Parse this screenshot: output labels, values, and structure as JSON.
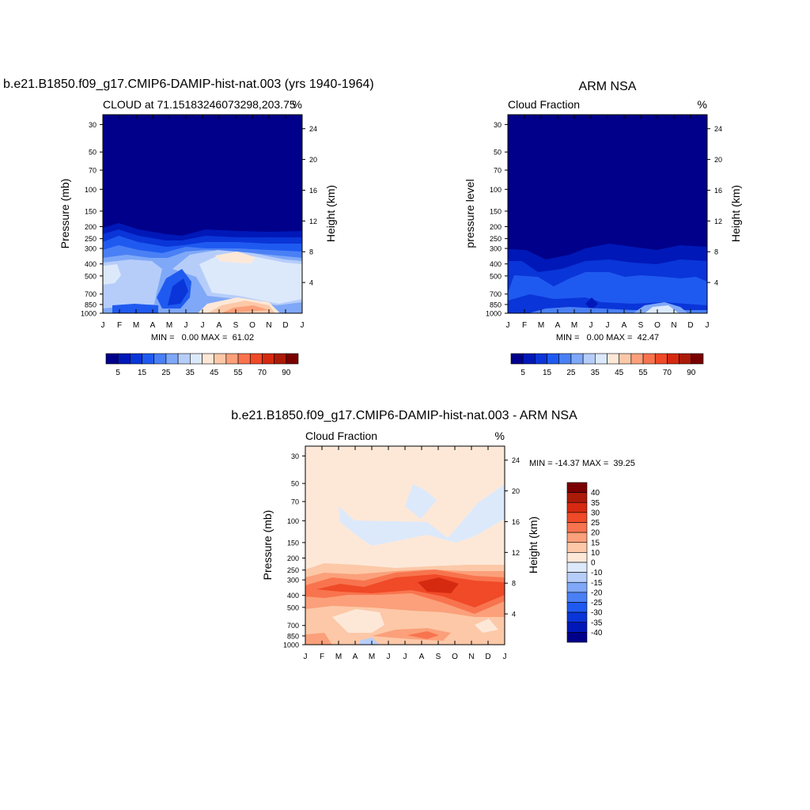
{
  "chart_data": [
    {
      "type": "heatmap",
      "title": "b.e21.B1850.f09_g17.CMIP6-DAMIP-hist-nat.003 (yrs 1940-1964)",
      "left_label": "CLOUD at 71.15183246073298,203.75",
      "right_label": "%",
      "ylabel": "Pressure (mb)",
      "ylabel_right": "Height (km)",
      "x_ticks": [
        "J",
        "F",
        "M",
        "A",
        "M",
        "J",
        "J",
        "A",
        "S",
        "O",
        "N",
        "D",
        "J"
      ],
      "y_ticks": [
        "30",
        "50",
        "70",
        "100",
        "150",
        "200",
        "250",
        "300",
        "400",
        "500",
        "700",
        "850",
        "1000"
      ],
      "y_ticks_right": [
        "24",
        "20",
        "16",
        "12",
        "8",
        "4"
      ],
      "stats": "MIN =   0.00 MAX =  61.02",
      "min": 0.0,
      "max": 61.02,
      "colorbar_labels": [
        "5",
        "15",
        "25",
        "35",
        "45",
        "55",
        "70",
        "90"
      ],
      "colorbar_colors": [
        "#00008a",
        "#0018b8",
        "#0a35d8",
        "#1f5af0",
        "#4a80f5",
        "#7fa8f8",
        "#b6cdfa",
        "#dce9fb",
        "#fde8d8",
        "#fcc8a8",
        "#fba07a",
        "#f8744e",
        "#f04a28",
        "#d62a10",
        "#ac1a08",
        "#7a0000"
      ]
    },
    {
      "type": "heatmap",
      "title": "ARM NSA",
      "left_label": "Cloud Fraction",
      "right_label": "%",
      "ylabel": "pressure level",
      "ylabel_right": "Height (km)",
      "x_ticks": [
        "J",
        "F",
        "M",
        "A",
        "M",
        "J",
        "J",
        "A",
        "S",
        "O",
        "N",
        "D",
        "J"
      ],
      "y_ticks": [
        "30",
        "50",
        "70",
        "100",
        "150",
        "200",
        "250",
        "300",
        "400",
        "500",
        "700",
        "850",
        "1000"
      ],
      "y_ticks_right": [
        "24",
        "20",
        "16",
        "12",
        "8",
        "4"
      ],
      "stats": "MIN =   0.00 MAX =  42.47",
      "min": 0.0,
      "max": 42.47,
      "colorbar_labels": [
        "5",
        "15",
        "25",
        "35",
        "45",
        "55",
        "70",
        "90"
      ],
      "colorbar_colors": [
        "#00008a",
        "#0018b8",
        "#0a35d8",
        "#1f5af0",
        "#4a80f5",
        "#7fa8f8",
        "#b6cdfa",
        "#dce9fb",
        "#fde8d8",
        "#fcc8a8",
        "#fba07a",
        "#f8744e",
        "#f04a28",
        "#d62a10",
        "#ac1a08",
        "#7a0000"
      ]
    },
    {
      "type": "heatmap",
      "title": "b.e21.B1850.f09_g17.CMIP6-DAMIP-hist-nat.003 - ARM NSA",
      "left_label": "Cloud Fraction",
      "right_label": "%",
      "ylabel": "Pressure (mb)",
      "ylabel_right": "Height (km)",
      "x_ticks": [
        "J",
        "F",
        "M",
        "A",
        "M",
        "J",
        "J",
        "A",
        "S",
        "O",
        "N",
        "D",
        "J"
      ],
      "y_ticks": [
        "30",
        "50",
        "70",
        "100",
        "150",
        "200",
        "250",
        "300",
        "400",
        "500",
        "700",
        "850",
        "1000"
      ],
      "y_ticks_right": [
        "24",
        "20",
        "16",
        "12",
        "8",
        "4"
      ],
      "stats": "MIN = -14.37 MAX =  39.25",
      "min": -14.37,
      "max": 39.25,
      "colorbar_labels": [
        "40",
        "35",
        "30",
        "25",
        "20",
        "15",
        "10",
        "0",
        "-10",
        "-15",
        "-20",
        "-25",
        "-30",
        "-35",
        "-40"
      ],
      "colorbar_colors": [
        "#7a0000",
        "#ac1a08",
        "#d62a10",
        "#f04a28",
        "#f8744e",
        "#fba07a",
        "#fcc8a8",
        "#fde8d8",
        "#dce9fb",
        "#b6cdfa",
        "#7fa8f8",
        "#4a80f5",
        "#1f5af0",
        "#0a35d8",
        "#0018b8",
        "#00008a"
      ]
    }
  ]
}
